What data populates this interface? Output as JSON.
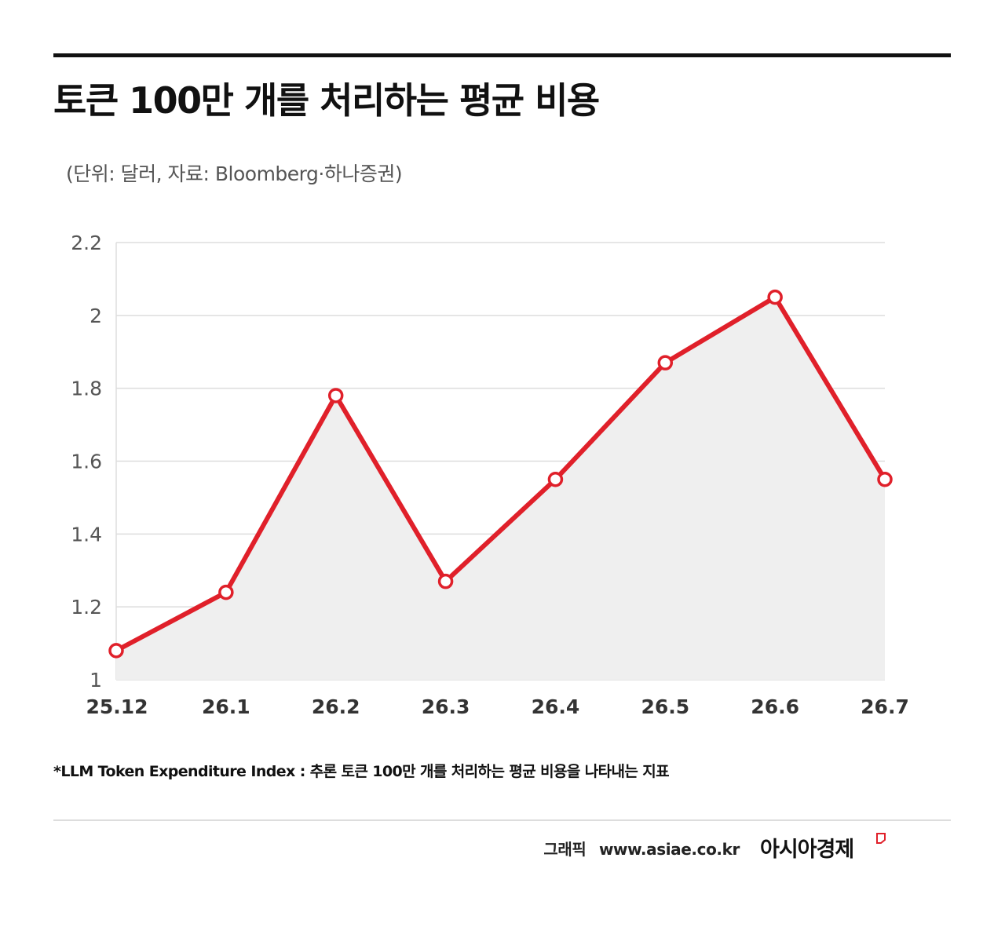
{
  "header": {
    "title": "토큰 100만 개를 처리하는 평균 비용",
    "unit_note": "(단위: 달러, 자료: Bloomberg·하나증권)"
  },
  "chart_data": {
    "type": "line",
    "title": "토큰 100만 개를 처리하는 평균 비용",
    "subtitle": "(단위: 달러, 자료: Bloomberg·하나증권)",
    "xlabel": "",
    "ylabel": "",
    "categories": [
      "25.12",
      "26.1",
      "26.2",
      "26.3",
      "26.4",
      "26.5",
      "26.6",
      "26.7"
    ],
    "series": [
      {
        "values": [
          1.08,
          1.24,
          1.78,
          1.27,
          1.55,
          1.87,
          2.05,
          1.55
        ]
      }
    ],
    "ylim": [
      1,
      2.2
    ],
    "yticks": [
      "1",
      "1.2",
      "1.4",
      "1.6",
      "1.8",
      "2",
      "2.2"
    ],
    "grid": true,
    "area_fill": true,
    "colors": {
      "line": "#e0202a",
      "area": "#efefef",
      "grid": "#dddddd",
      "marker_fill": "#ffffff"
    }
  },
  "footer": {
    "footnote": "*LLM Token Expenditure Index : 추론 토큰 100만 개를 처리하는 평균 비용을 나타내는 지표",
    "credit_label": "그래픽",
    "site": "www.asiae.co.kr",
    "brand": "아시아경제",
    "brand_color": "#e0202a"
  }
}
